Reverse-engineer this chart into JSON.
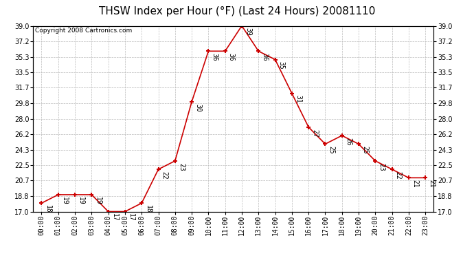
{
  "title": "THSW Index per Hour (°F) (Last 24 Hours) 20081110",
  "copyright": "Copyright 2008 Cartronics.com",
  "hours": [
    "00:00",
    "01:00",
    "02:00",
    "03:00",
    "04:00",
    "05:00",
    "06:00",
    "07:00",
    "08:00",
    "09:00",
    "10:00",
    "11:00",
    "12:00",
    "13:00",
    "14:00",
    "15:00",
    "16:00",
    "17:00",
    "18:00",
    "19:00",
    "20:00",
    "21:00",
    "22:00",
    "23:00"
  ],
  "values": [
    18,
    19,
    19,
    19,
    17,
    17,
    18,
    22,
    23,
    30,
    36,
    36,
    39,
    36,
    35,
    31,
    27,
    25,
    26,
    25,
    23,
    22,
    21,
    21
  ],
  "line_color": "#cc0000",
  "marker_color": "#cc0000",
  "bg_color": "#ffffff",
  "grid_color": "#bbbbbb",
  "ylim_min": 17.0,
  "ylim_max": 39.0,
  "yticks": [
    17.0,
    18.8,
    20.7,
    22.5,
    24.3,
    26.2,
    28.0,
    29.8,
    31.7,
    33.5,
    35.3,
    37.2,
    39.0
  ],
  "title_fontsize": 11,
  "copyright_fontsize": 6.5,
  "label_fontsize": 7,
  "tick_label_fontsize": 7
}
